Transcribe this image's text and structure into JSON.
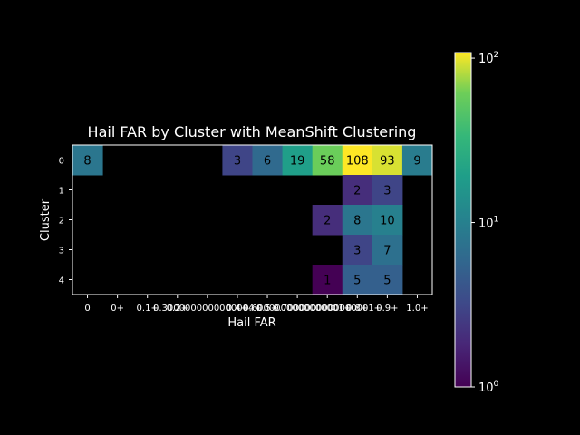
{
  "chart_data": {
    "type": "heatmap",
    "title": "Hail FAR by Cluster with MeanShift Clustering",
    "xlabel": "Hail FAR",
    "ylabel": "Cluster",
    "x_tick_labels": [
      "0",
      "0+",
      "0.1+",
      "0.2+",
      "0.3000000000000004+",
      "0.4+",
      "0.5+",
      "0.6000000000000001+",
      "0.7000000000000001+",
      "0.8+",
      "0.9+",
      "1.0+"
    ],
    "y_tick_labels": [
      "0",
      "1",
      "2",
      "3",
      "4"
    ],
    "matrix": [
      [
        8,
        null,
        null,
        null,
        null,
        3,
        6,
        19,
        58,
        108,
        93,
        9
      ],
      [
        null,
        null,
        null,
        null,
        null,
        null,
        null,
        null,
        null,
        2,
        3,
        null
      ],
      [
        null,
        null,
        null,
        null,
        null,
        null,
        null,
        null,
        2,
        8,
        10,
        null
      ],
      [
        null,
        null,
        null,
        null,
        null,
        null,
        null,
        null,
        null,
        3,
        7,
        null
      ],
      [
        null,
        null,
        null,
        null,
        null,
        null,
        null,
        null,
        1,
        5,
        5,
        null
      ]
    ],
    "colorbar": {
      "scale": "log",
      "colormap": "viridis",
      "range": [
        1,
        108
      ],
      "tick_values": [
        1,
        10,
        100
      ],
      "tick_labels": [
        "10",
        "10",
        "10"
      ],
      "tick_exponents": [
        "0",
        "1",
        "2"
      ]
    },
    "colors": {
      "background": "#000000",
      "text": "#ffffff",
      "cell_label": "#000000"
    }
  }
}
